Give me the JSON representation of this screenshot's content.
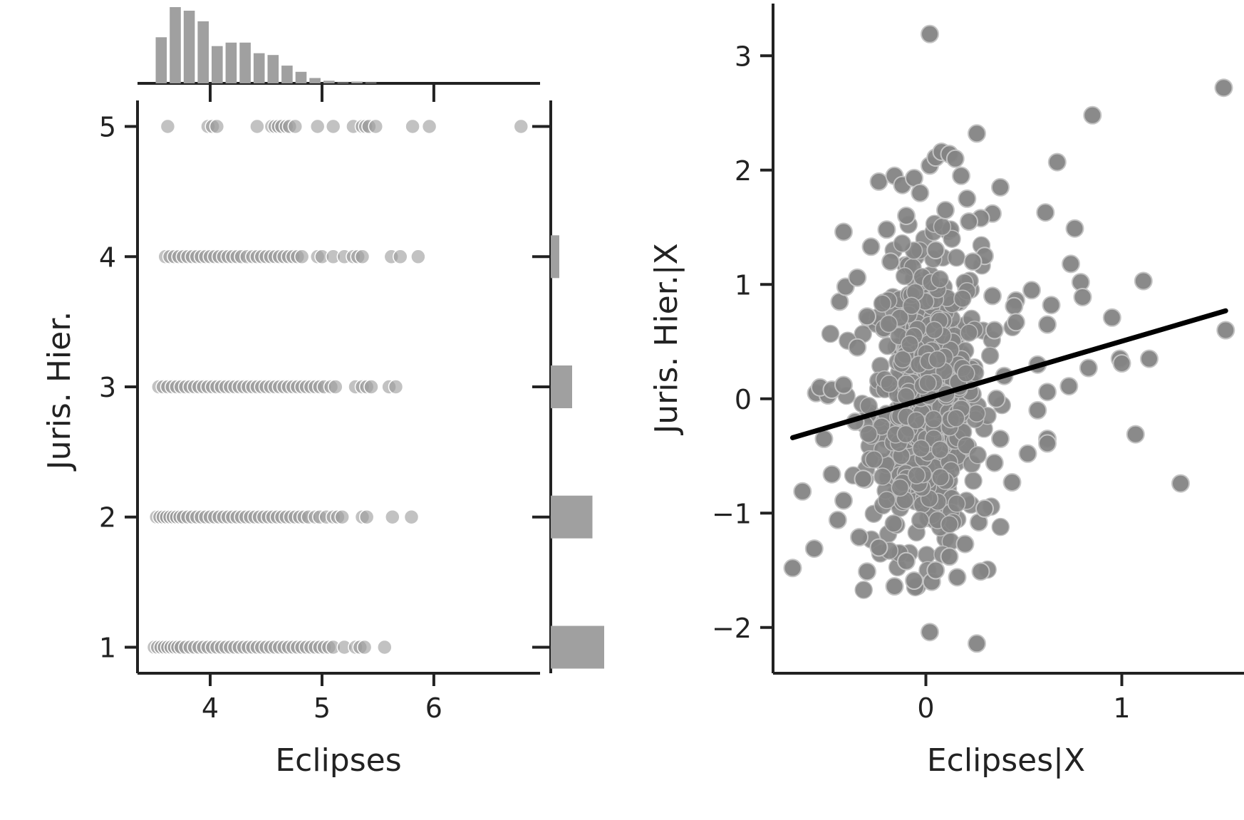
{
  "colors": {
    "axis": "#222222",
    "points_left": "#9a9a9a",
    "points_right": "#848484",
    "bars": "#a0a0a0",
    "fit_line": "#000000"
  },
  "chart_data": [
    {
      "type": "scatter",
      "xlabel": "Eclipses",
      "ylabel": "Juris. Hier.",
      "xlim": [
        3.35,
        6.95
      ],
      "ylim": [
        0.8,
        5.2
      ],
      "x_ticks": [
        4,
        5,
        6
      ],
      "y_ticks": [
        1,
        2,
        3,
        4,
        5
      ],
      "x_tick_labels": [
        "4",
        "5",
        "6"
      ],
      "y_tick_labels": [
        "1",
        "2",
        "3",
        "4",
        "5"
      ],
      "grid": false,
      "rows": [
        {
          "y": 5,
          "x": [
            3.62,
            3.98,
            4.02,
            4.06,
            4.42,
            4.55,
            4.58,
            4.61,
            4.64,
            4.68,
            4.71,
            4.76,
            4.96,
            5.1,
            5.28,
            5.36,
            5.39,
            5.42,
            5.48,
            5.81,
            5.96,
            6.78
          ]
        },
        {
          "y": 4,
          "x": [
            3.6,
            3.64,
            3.68,
            3.72,
            3.76,
            3.8,
            3.84,
            3.88,
            3.92,
            3.96,
            4.0,
            4.04,
            4.08,
            4.12,
            4.16,
            4.2,
            4.24,
            4.28,
            4.33,
            4.38,
            4.42,
            4.46,
            4.5,
            4.54,
            4.58,
            4.62,
            4.66,
            4.7,
            4.74,
            4.78,
            4.82,
            4.96,
            5.0,
            5.1,
            5.2,
            5.28,
            5.32,
            5.36,
            5.62,
            5.7,
            5.86
          ]
        },
        {
          "y": 3,
          "x": [
            3.54,
            3.58,
            3.62,
            3.66,
            3.7,
            3.74,
            3.78,
            3.82,
            3.86,
            3.9,
            3.94,
            3.98,
            4.02,
            4.06,
            4.1,
            4.14,
            4.18,
            4.22,
            4.26,
            4.3,
            4.34,
            4.38,
            4.42,
            4.46,
            4.5,
            4.54,
            4.58,
            4.62,
            4.66,
            4.7,
            4.74,
            4.78,
            4.82,
            4.86,
            4.9,
            4.94,
            4.98,
            5.02,
            5.08,
            5.12,
            5.3,
            5.36,
            5.4,
            5.44,
            5.6,
            5.66
          ]
        },
        {
          "y": 2,
          "x": [
            3.52,
            3.55,
            3.58,
            3.61,
            3.64,
            3.67,
            3.7,
            3.73,
            3.76,
            3.8,
            3.84,
            3.88,
            3.92,
            3.96,
            4.0,
            4.04,
            4.08,
            4.12,
            4.16,
            4.2,
            4.24,
            4.28,
            4.32,
            4.36,
            4.4,
            4.44,
            4.48,
            4.52,
            4.56,
            4.6,
            4.64,
            4.68,
            4.72,
            4.76,
            4.8,
            4.84,
            4.88,
            4.94,
            4.98,
            5.04,
            5.1,
            5.14,
            5.18,
            5.36,
            5.4,
            5.63,
            5.8
          ]
        },
        {
          "y": 1,
          "x": [
            3.5,
            3.53,
            3.56,
            3.59,
            3.62,
            3.65,
            3.68,
            3.71,
            3.74,
            3.78,
            3.82,
            3.86,
            3.9,
            3.94,
            3.98,
            4.02,
            4.06,
            4.1,
            4.14,
            4.18,
            4.22,
            4.26,
            4.3,
            4.34,
            4.38,
            4.42,
            4.46,
            4.5,
            4.54,
            4.58,
            4.62,
            4.66,
            4.7,
            4.74,
            4.78,
            4.82,
            4.86,
            4.9,
            4.94,
            4.98,
            5.02,
            5.06,
            5.1,
            5.2,
            5.3,
            5.34,
            5.38,
            5.56
          ]
        }
      ],
      "marginal_x": {
        "type": "bar",
        "bin_edges": [
          3.5,
          3.625,
          3.75,
          3.875,
          4.0,
          4.125,
          4.25,
          4.375,
          4.5,
          4.625,
          4.75,
          4.875,
          5.0,
          5.125,
          5.25,
          5.375,
          5.5
        ],
        "counts": [
          52,
          86,
          82,
          70,
          42,
          46,
          46,
          34,
          32,
          20,
          13,
          6,
          3,
          1,
          2,
          1
        ]
      },
      "marginal_y": {
        "type": "bar",
        "categories": [
          1,
          2,
          3,
          4,
          5
        ],
        "counts": [
          100,
          78,
          40,
          16,
          0
        ]
      }
    },
    {
      "type": "scatter",
      "xlabel": "Eclipses|X",
      "ylabel": "Juris. Hier.|X",
      "xlim": [
        -0.78,
        1.6
      ],
      "ylim": [
        -2.4,
        3.4
      ],
      "x_ticks": [
        0,
        1
      ],
      "y_ticks": [
        -2,
        -1,
        0,
        1,
        2,
        3
      ],
      "x_tick_labels": [
        "0",
        "1"
      ],
      "y_tick_labels": [
        "−2",
        "−1",
        "0",
        "1",
        "2",
        "3"
      ],
      "grid": false,
      "fit_line": {
        "x": [
          -0.68,
          1.53
        ],
        "y": [
          -0.34,
          0.77
        ]
      },
      "points": [
        [
          0.02,
          3.19
        ],
        [
          1.52,
          2.72
        ],
        [
          0.85,
          2.48
        ],
        [
          0.26,
          2.32
        ],
        [
          0.67,
          2.07
        ],
        [
          0.61,
          1.63
        ],
        [
          0.38,
          1.85
        ],
        [
          0.76,
          1.49
        ],
        [
          0.34,
          1.62
        ],
        [
          0.28,
          1.58
        ],
        [
          0.3,
          1.25
        ],
        [
          0.74,
          1.18
        ],
        [
          1.11,
          1.03
        ],
        [
          0.79,
          1.02
        ],
        [
          0.8,
          0.89
        ],
        [
          0.54,
          0.95
        ],
        [
          0.46,
          0.86
        ],
        [
          0.45,
          0.81
        ],
        [
          0.64,
          0.82
        ],
        [
          0.62,
          0.65
        ],
        [
          0.46,
          0.67
        ],
        [
          0.95,
          0.71
        ],
        [
          1.53,
          0.6
        ],
        [
          0.57,
          0.3
        ],
        [
          0.83,
          0.27
        ],
        [
          0.99,
          0.35
        ],
        [
          1.0,
          0.31
        ],
        [
          1.14,
          0.35
        ],
        [
          0.73,
          0.11
        ],
        [
          0.62,
          0.06
        ],
        [
          0.57,
          -0.1
        ],
        [
          0.62,
          -0.35
        ],
        [
          0.62,
          -0.39
        ],
        [
          0.52,
          -0.48
        ],
        [
          1.07,
          -0.31
        ],
        [
          1.3,
          -0.74
        ],
        [
          0.44,
          -0.73
        ],
        [
          0.26,
          -2.14
        ],
        [
          0.02,
          -2.04
        ],
        [
          -0.63,
          -0.81
        ],
        [
          -0.68,
          -1.48
        ],
        [
          -0.57,
          -1.31
        ],
        [
          -0.45,
          -1.06
        ],
        [
          -0.42,
          -0.89
        ],
        [
          -0.48,
          -0.66
        ],
        [
          -0.52,
          -0.35
        ],
        [
          -0.56,
          0.05
        ],
        [
          -0.5,
          0.03
        ],
        [
          -0.54,
          0.1
        ],
        [
          -0.48,
          0.08
        ],
        [
          -0.42,
          0.12
        ],
        [
          -0.44,
          0.85
        ],
        [
          -0.41,
          0.98
        ],
        [
          -0.42,
          1.46
        ],
        [
          -0.28,
          1.33
        ],
        [
          -0.24,
          1.9
        ],
        [
          -0.16,
          1.95
        ],
        [
          -0.12,
          1.87
        ],
        [
          -0.06,
          1.93
        ],
        [
          -0.03,
          1.8
        ],
        [
          0.02,
          2.04
        ],
        [
          0.05,
          2.11
        ],
        [
          0.08,
          2.16
        ],
        [
          0.12,
          2.14
        ],
        [
          0.15,
          2.1
        ],
        [
          0.18,
          1.95
        ],
        [
          0.21,
          1.75
        ],
        [
          -0.16,
          -1.64
        ],
        [
          -0.06,
          -1.59
        ],
        [
          0.03,
          -1.6
        ],
        [
          0.16,
          -1.56
        ],
        [
          0.28,
          -1.51
        ],
        [
          -0.3,
          -1.51
        ],
        [
          0.2,
          -1.27
        ],
        [
          0.27,
          -1.08
        ],
        [
          0.3,
          -0.96
        ],
        [
          -0.34,
          -1.21
        ],
        [
          0.35,
          -0.56
        ],
        [
          0.38,
          -0.35
        ],
        [
          0.36,
          0.0
        ],
        [
          0.4,
          0.2
        ],
        [
          0.35,
          0.6
        ],
        [
          0.34,
          0.9
        ],
        [
          -0.35,
          1.06
        ],
        [
          -0.3,
          0.72
        ],
        [
          -0.35,
          0.45
        ],
        [
          -0.36,
          -0.2
        ],
        [
          -0.32,
          -0.7
        ],
        [
          -0.24,
          -1.3
        ],
        [
          -0.1,
          -1.42
        ],
        [
          0.05,
          -1.5
        ],
        [
          0.12,
          -1.38
        ],
        [
          -0.2,
          1.48
        ],
        [
          -0.1,
          1.6
        ],
        [
          0.1,
          1.65
        ],
        [
          0.22,
          1.55
        ],
        [
          -0.18,
          1.2
        ],
        [
          0.05,
          1.3
        ],
        [
          0.24,
          1.2
        ]
      ]
    }
  ]
}
